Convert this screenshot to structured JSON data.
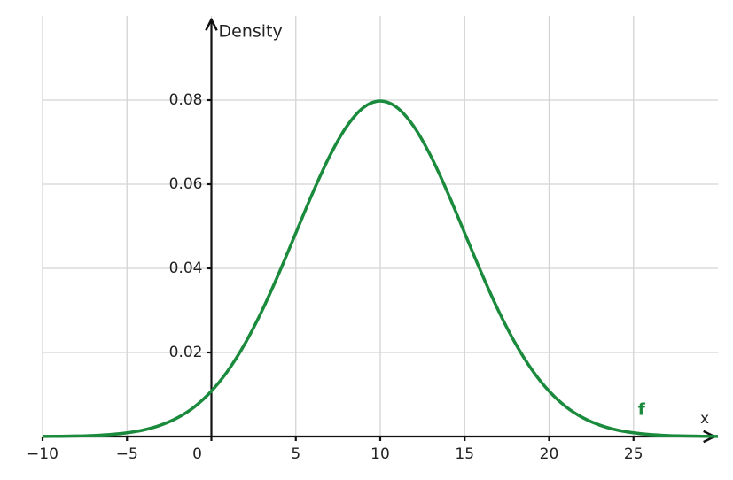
{
  "chart_data": {
    "type": "line",
    "x_label": "x",
    "y_label": "Density",
    "x": [
      -10,
      -9,
      -8,
      -7,
      -6,
      -5,
      -4,
      -3,
      -2,
      -1,
      0,
      1,
      2,
      3,
      4,
      5,
      6,
      7,
      8,
      9,
      10,
      11,
      12,
      13,
      14,
      15,
      16,
      17,
      18,
      19,
      20,
      21,
      22,
      23,
      24,
      25,
      26,
      27,
      28,
      29,
      30
    ],
    "series": [
      {
        "name": "f",
        "color": "#1a8a3c",
        "values": [
          3e-05,
          6e-05,
          0.00012,
          0.00025,
          0.00048,
          0.00089,
          0.00158,
          0.00272,
          0.00448,
          0.00709,
          0.0108,
          0.01579,
          0.02218,
          0.02995,
          0.03884,
          0.04839,
          0.05794,
          0.06664,
          0.07365,
          0.07821,
          0.07979,
          0.07821,
          0.07365,
          0.06664,
          0.05794,
          0.04839,
          0.03884,
          0.02995,
          0.02218,
          0.01579,
          0.0108,
          0.00709,
          0.00448,
          0.00272,
          0.00158,
          0.00089,
          0.00048,
          0.00025,
          0.00012,
          6e-05,
          3e-05
        ]
      }
    ],
    "xlim": [
      -10,
      30
    ],
    "ylim": [
      0,
      0.1
    ],
    "xticks": [
      {
        "value": -10,
        "label": "−10"
      },
      {
        "value": -5,
        "label": "−5"
      },
      0,
      5,
      10,
      15,
      20,
      25
    ],
    "yticks": [
      0.02,
      0.04,
      0.06,
      0.08
    ],
    "grid": true
  }
}
